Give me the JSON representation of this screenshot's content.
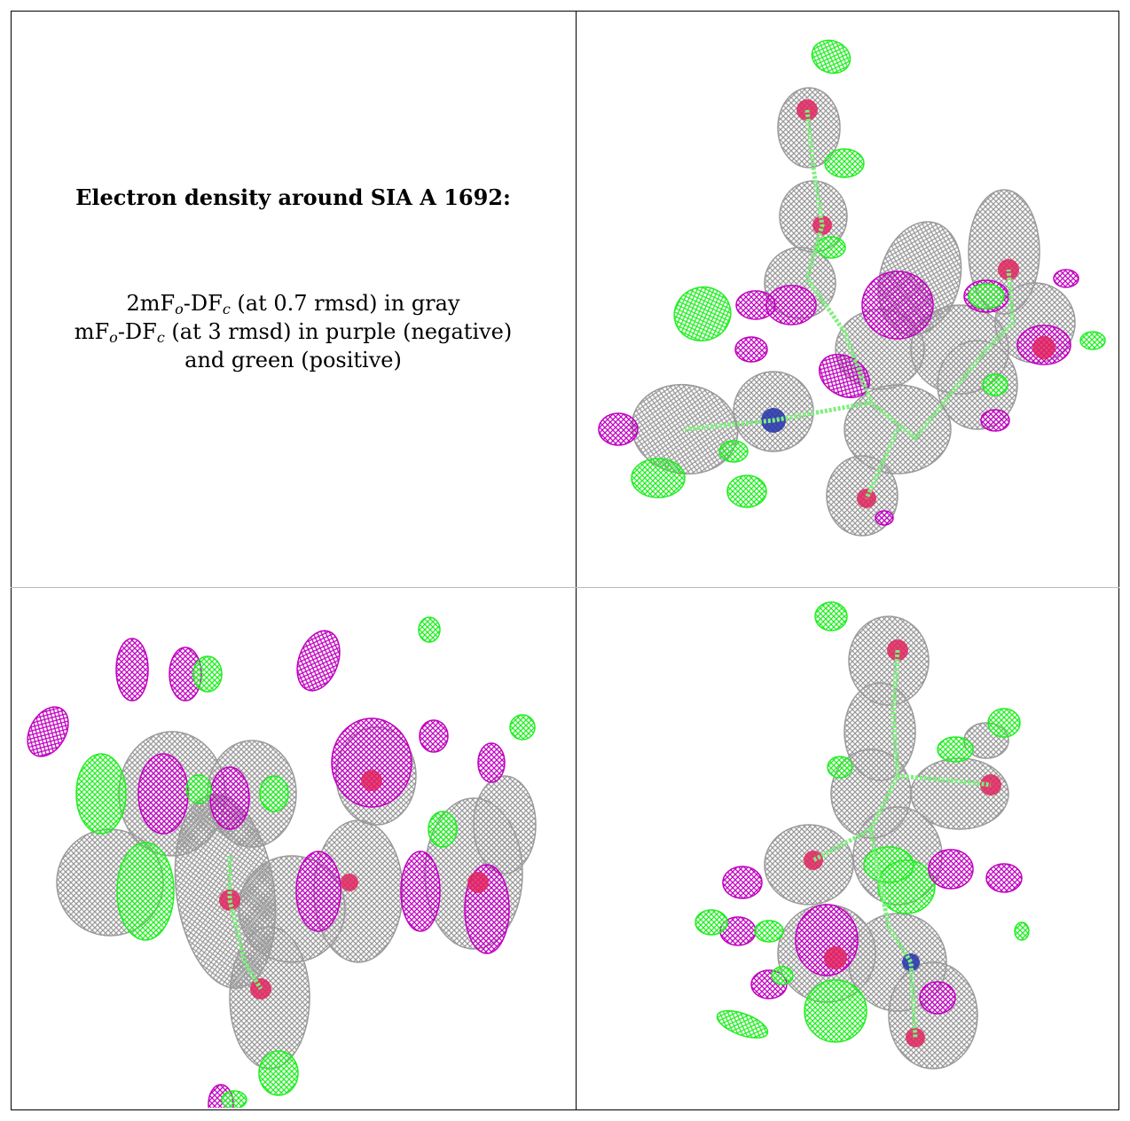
{
  "caption": {
    "title": "Electron density around SIA A 1692:",
    "lines": [
      {
        "pre": "2mF",
        "sub1": "o",
        "mid": "-DF",
        "sub2": "c",
        "post": " (at 0.7 rmsd) in gray"
      },
      {
        "pre": "mF",
        "sub1": "o",
        "mid": "-DF",
        "sub2": "c",
        "post": " (at 3 rmsd) in purple (negative)"
      },
      {
        "text": "and green (positive)"
      }
    ]
  },
  "colors": {
    "map_2fo_fc": "#9a9a9a",
    "map_negative": "#c000c0",
    "map_positive": "#22ee22",
    "oxygen": "#e0245e",
    "nitrogen": "#2233aa",
    "model_bonds": "#7cf07c"
  },
  "panels": [
    {
      "name": "view-top-right"
    },
    {
      "name": "view-bottom-left"
    },
    {
      "name": "view-bottom-right"
    }
  ]
}
